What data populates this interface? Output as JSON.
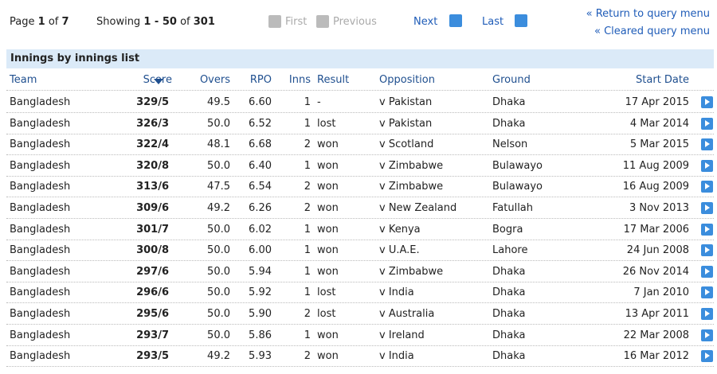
{
  "pagination": {
    "page_label": "Page",
    "page": "1",
    "page_of": "of",
    "pages": "7",
    "showing_label": "Showing",
    "range": "1 - 50",
    "range_of": "of",
    "total": "301",
    "first": "First",
    "previous": "Previous",
    "next": "Next",
    "last": "Last"
  },
  "links": [
    "Return to query menu",
    "Cleared query menu"
  ],
  "table": {
    "title": "Innings by innings list",
    "columns": [
      "Team",
      "Score",
      "Overs",
      "RPO",
      "Inns",
      "Result",
      "Opposition",
      "Ground",
      "Start Date"
    ],
    "rows": [
      [
        "Bangladesh",
        "329/5",
        "49.5",
        "6.60",
        "1",
        "-",
        "v Pakistan",
        "Dhaka",
        "17 Apr 2015"
      ],
      [
        "Bangladesh",
        "326/3",
        "50.0",
        "6.52",
        "1",
        "lost",
        "v Pakistan",
        "Dhaka",
        "4 Mar 2014"
      ],
      [
        "Bangladesh",
        "322/4",
        "48.1",
        "6.68",
        "2",
        "won",
        "v Scotland",
        "Nelson",
        "5 Mar 2015"
      ],
      [
        "Bangladesh",
        "320/8",
        "50.0",
        "6.40",
        "1",
        "won",
        "v Zimbabwe",
        "Bulawayo",
        "11 Aug 2009"
      ],
      [
        "Bangladesh",
        "313/6",
        "47.5",
        "6.54",
        "2",
        "won",
        "v Zimbabwe",
        "Bulawayo",
        "16 Aug 2009"
      ],
      [
        "Bangladesh",
        "309/6",
        "49.2",
        "6.26",
        "2",
        "won",
        "v New Zealand",
        "Fatullah",
        "3 Nov 2013"
      ],
      [
        "Bangladesh",
        "301/7",
        "50.0",
        "6.02",
        "1",
        "won",
        "v Kenya",
        "Bogra",
        "17 Mar 2006"
      ],
      [
        "Bangladesh",
        "300/8",
        "50.0",
        "6.00",
        "1",
        "won",
        "v U.A.E.",
        "Lahore",
        "24 Jun 2008"
      ],
      [
        "Bangladesh",
        "297/6",
        "50.0",
        "5.94",
        "1",
        "won",
        "v Zimbabwe",
        "Dhaka",
        "26 Nov 2014"
      ],
      [
        "Bangladesh",
        "296/6",
        "50.0",
        "5.92",
        "1",
        "lost",
        "v India",
        "Dhaka",
        "7 Jan 2010"
      ],
      [
        "Bangladesh",
        "295/6",
        "50.0",
        "5.90",
        "2",
        "lost",
        "v Australia",
        "Dhaka",
        "13 Apr 2011"
      ],
      [
        "Bangladesh",
        "293/7",
        "50.0",
        "5.86",
        "1",
        "won",
        "v Ireland",
        "Dhaka",
        "22 Mar 2008"
      ],
      [
        "Bangladesh",
        "293/5",
        "49.2",
        "5.93",
        "2",
        "won",
        "v India",
        "Dhaka",
        "16 Mar 2012"
      ]
    ]
  }
}
